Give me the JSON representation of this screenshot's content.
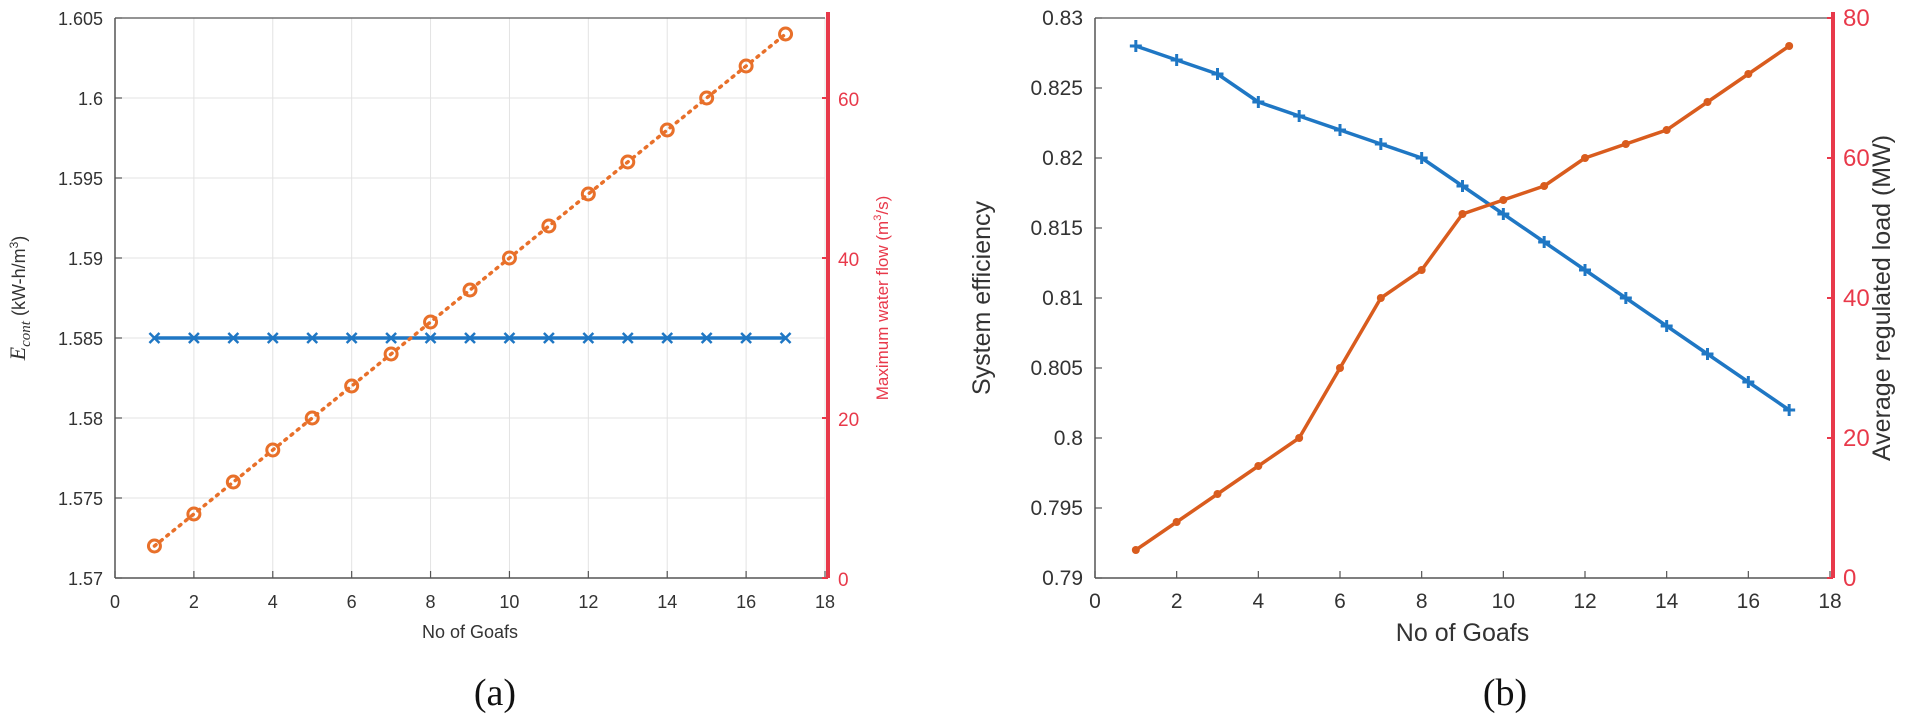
{
  "chart_data": [
    {
      "id": "a",
      "type": "line",
      "caption": "(a)",
      "xlabel": "No of Goafs",
      "ylabel_left": {
        "symbol": "E",
        "subscript": "cont",
        "unit_pre": " (kW-h/m",
        "unit_sup": "3",
        "unit_post": ")"
      },
      "ylabel_right": {
        "pre": "Maximum water flow (m",
        "sup": "3",
        "post": "/s)"
      },
      "xlim": [
        0,
        18
      ],
      "xticks": [
        0,
        2,
        4,
        6,
        8,
        10,
        12,
        14,
        16,
        18
      ],
      "ylim_left": [
        1.57,
        1.605
      ],
      "yticks_left": [
        "1.57",
        "1.575",
        "1.58",
        "1.585",
        "1.59",
        "1.595",
        "1.6",
        "1.605"
      ],
      "ylim_right": [
        0,
        70
      ],
      "yticks_right": [
        "0",
        "20",
        "40",
        "60"
      ],
      "grid": true,
      "series": [
        {
          "name": "E_cont",
          "axis": "left",
          "color": "#1f77c4",
          "marker": "x",
          "line": "solid",
          "x": [
            1,
            2,
            3,
            4,
            5,
            6,
            7,
            8,
            9,
            10,
            11,
            12,
            13,
            14,
            15,
            16,
            17
          ],
          "y": [
            1.585,
            1.585,
            1.585,
            1.585,
            1.585,
            1.585,
            1.585,
            1.585,
            1.585,
            1.585,
            1.585,
            1.585,
            1.585,
            1.585,
            1.585,
            1.585,
            1.585
          ]
        },
        {
          "name": "Maximum water flow",
          "axis": "right",
          "color": "#e8702a",
          "marker": "o",
          "line": "dotted",
          "x": [
            1,
            2,
            3,
            4,
            5,
            6,
            7,
            8,
            9,
            10,
            11,
            12,
            13,
            14,
            15,
            16,
            17
          ],
          "y": [
            4,
            8,
            12,
            16,
            20,
            24,
            28,
            32,
            36,
            40,
            44,
            48,
            52,
            56,
            60,
            64,
            68
          ]
        }
      ],
      "colors": {
        "right_axis": "#e8394a",
        "left_axis": "#444444"
      }
    },
    {
      "id": "b",
      "type": "line",
      "caption": "(b)",
      "xlabel": "No of Goafs",
      "ylabel_left": "System efficiency",
      "ylabel_right": "Average regulated load (MW)",
      "xlim": [
        0,
        18
      ],
      "xticks": [
        0,
        2,
        4,
        6,
        8,
        10,
        12,
        14,
        16,
        18
      ],
      "ylim_left": [
        0.79,
        0.83
      ],
      "yticks_left": [
        "0.79",
        "0.795",
        "0.8",
        "0.805",
        "0.81",
        "0.815",
        "0.82",
        "0.825",
        "0.83"
      ],
      "ylim_right": [
        0,
        80
      ],
      "yticks_right": [
        "0",
        "20",
        "40",
        "60",
        "80"
      ],
      "grid": false,
      "series": [
        {
          "name": "System efficiency",
          "axis": "left",
          "color": "#1f77c4",
          "marker": "+",
          "line": "solid",
          "x": [
            1,
            2,
            3,
            4,
            5,
            6,
            7,
            8,
            9,
            10,
            11,
            12,
            13,
            14,
            15,
            16,
            17
          ],
          "y": [
            0.828,
            0.827,
            0.826,
            0.824,
            0.823,
            0.822,
            0.821,
            0.82,
            0.818,
            0.816,
            0.814,
            0.812,
            0.81,
            0.808,
            0.806,
            0.804,
            0.802
          ]
        },
        {
          "name": "Average regulated load",
          "axis": "right",
          "color": "#d95c1e",
          "marker": ".",
          "line": "solid",
          "x": [
            1,
            2,
            3,
            4,
            5,
            6,
            7,
            8,
            9,
            10,
            11,
            12,
            13,
            14,
            15,
            16,
            17
          ],
          "y": [
            4,
            8,
            12,
            16,
            20,
            30,
            40,
            44,
            52,
            54,
            56,
            60,
            62,
            64,
            68,
            72,
            76
          ]
        }
      ],
      "colors": {
        "right_axis": "#e8394a",
        "left_axis": "#444444"
      }
    }
  ]
}
